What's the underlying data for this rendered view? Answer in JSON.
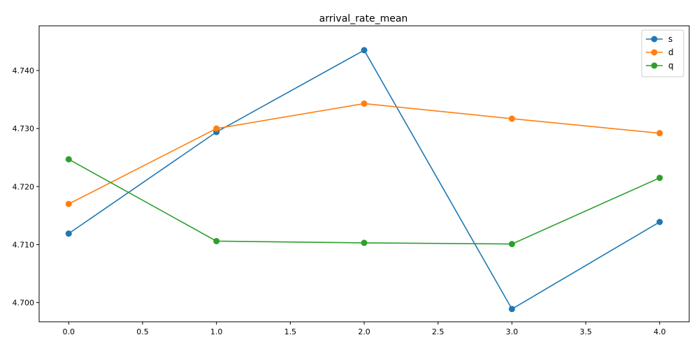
{
  "chart_data": {
    "type": "line",
    "title": "arrival_rate_mean",
    "xlabel": "",
    "ylabel": "",
    "x": [
      0,
      1,
      2,
      3,
      4
    ],
    "xlim": [
      -0.2,
      4.2
    ],
    "ylim": [
      4.6967,
      4.7477
    ],
    "xticks": [
      "0.0",
      "0.5",
      "1.0",
      "1.5",
      "2.0",
      "2.5",
      "3.0",
      "3.5",
      "4.0"
    ],
    "yticks": [
      "4.700",
      "4.710",
      "4.720",
      "4.730",
      "4.740"
    ],
    "grid": false,
    "legend_position": "top-right",
    "series": [
      {
        "name": "s",
        "color": "#1f77b4",
        "values": [
          4.7119,
          4.7294,
          4.7435,
          4.6989,
          4.7139
        ]
      },
      {
        "name": "d",
        "color": "#ff7f0e",
        "values": [
          4.717,
          4.73,
          4.7343,
          4.7317,
          4.7292
        ]
      },
      {
        "name": "q",
        "color": "#2ca02c",
        "values": [
          4.7247,
          4.7106,
          4.7103,
          4.7101,
          4.7215
        ]
      }
    ]
  }
}
